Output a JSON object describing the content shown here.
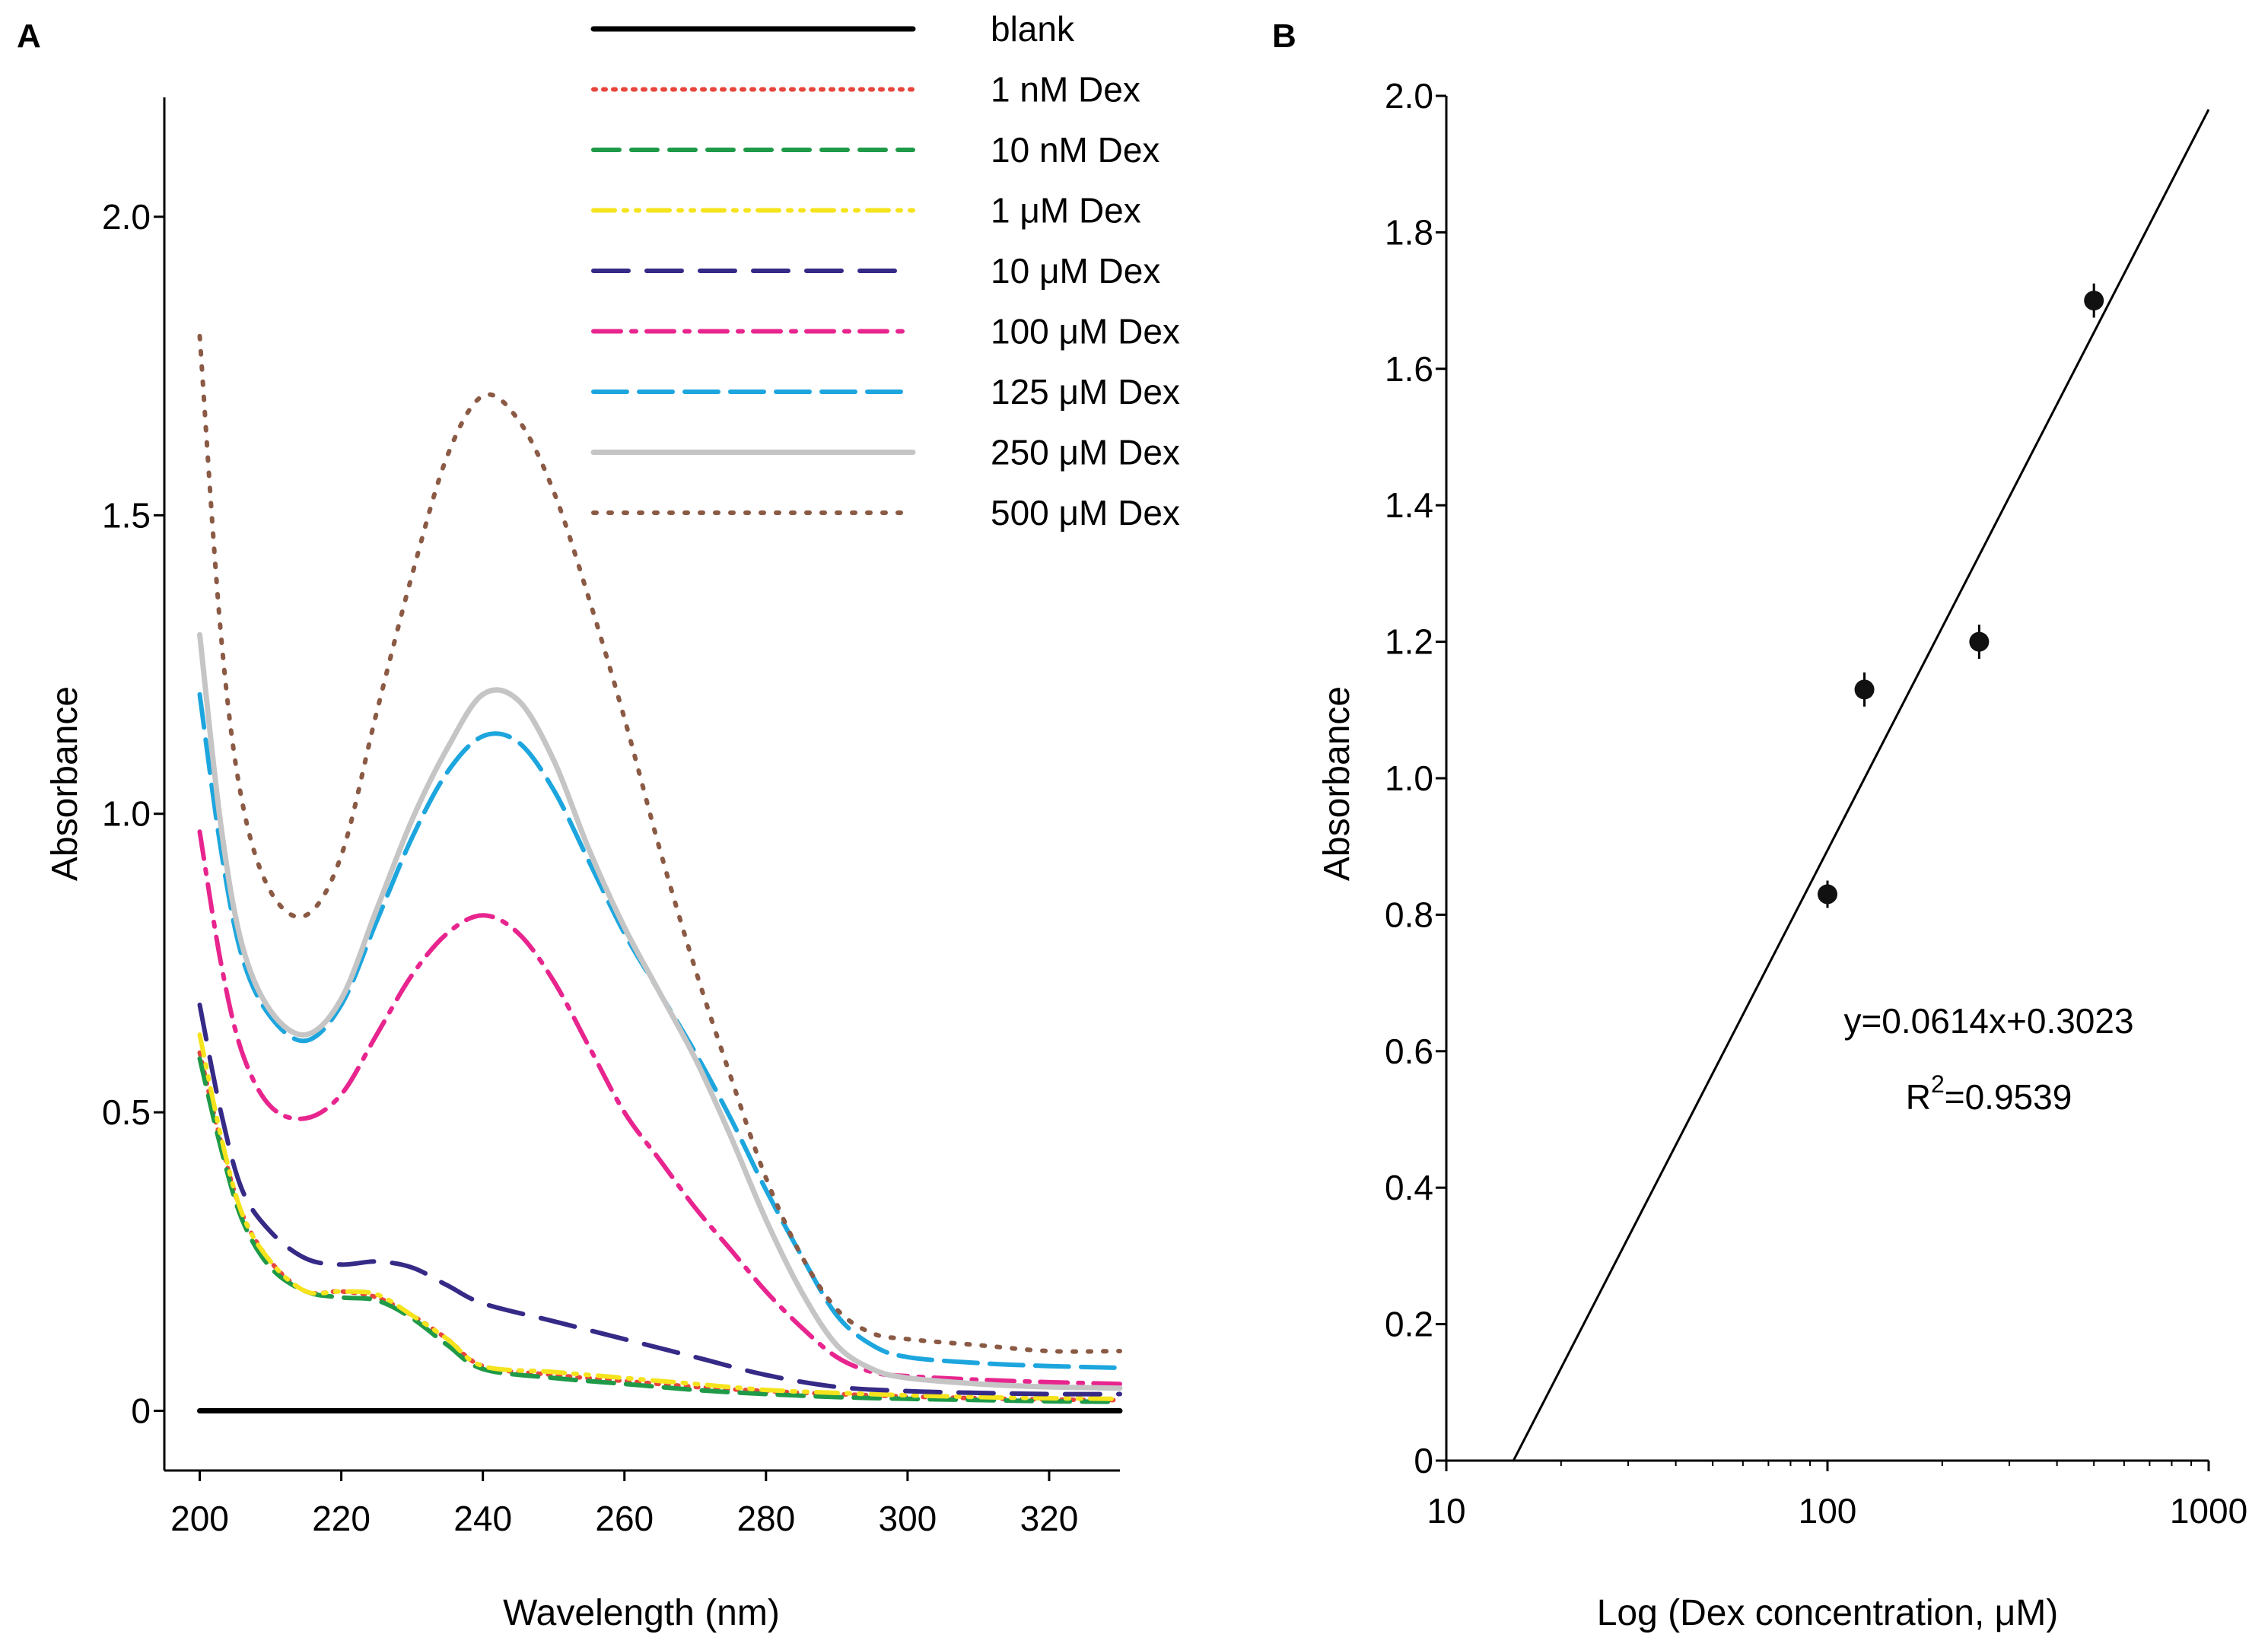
{
  "chart_data": [
    {
      "panel_label": "A",
      "type": "line",
      "xlabel": "Wavelength (nm)",
      "ylabel": "Absorbance",
      "xlim": [
        195,
        330
      ],
      "ylim": [
        -0.1,
        2.2
      ],
      "xticks": [
        200,
        220,
        240,
        260,
        280,
        300,
        320
      ],
      "xtick_labels": [
        "200",
        "220",
        "240",
        "260",
        "280",
        "300",
        "320"
      ],
      "yticks": [
        0,
        0.5,
        1.0,
        1.5,
        2.0
      ],
      "ytick_labels": [
        "0",
        "0.5",
        "1.0",
        "1.5",
        "2.0"
      ],
      "legend_position": "top-right",
      "series": [
        {
          "name": "blank",
          "color": "#000000",
          "style": "solid",
          "x": [
            200,
            330
          ],
          "y": [
            0.0,
            0.0
          ]
        },
        {
          "name": "1 nM Dex",
          "color": "#e8453c",
          "style": "dotted",
          "x": [
            200,
            203,
            206,
            210,
            215,
            220,
            225,
            230,
            235,
            240,
            250,
            260,
            270,
            280,
            290,
            300,
            310,
            320,
            330
          ],
          "y": [
            0.6,
            0.45,
            0.33,
            0.25,
            0.2,
            0.2,
            0.19,
            0.16,
            0.12,
            0.075,
            0.06,
            0.05,
            0.04,
            0.033,
            0.028,
            0.024,
            0.021,
            0.019,
            0.018
          ]
        },
        {
          "name": "10 nM Dex",
          "color": "#1f9a48",
          "style": "dashed",
          "x": [
            200,
            203,
            206,
            210,
            215,
            220,
            225,
            230,
            235,
            240,
            250,
            260,
            270,
            280,
            290,
            300,
            310,
            320,
            330
          ],
          "y": [
            0.59,
            0.44,
            0.32,
            0.24,
            0.2,
            0.19,
            0.185,
            0.155,
            0.11,
            0.07,
            0.055,
            0.045,
            0.035,
            0.028,
            0.023,
            0.02,
            0.018,
            0.016,
            0.015
          ]
        },
        {
          "name": "1 μM Dex",
          "color": "#f5e31c",
          "style": "dash-dot-dot",
          "x": [
            200,
            203,
            206,
            210,
            215,
            220,
            225,
            230,
            235,
            240,
            250,
            260,
            270,
            280,
            290,
            300,
            310,
            320,
            330
          ],
          "y": [
            0.63,
            0.46,
            0.33,
            0.25,
            0.2,
            0.2,
            0.195,
            0.16,
            0.12,
            0.075,
            0.065,
            0.055,
            0.045,
            0.035,
            0.03,
            0.026,
            0.023,
            0.021,
            0.02
          ]
        },
        {
          "name": "10 μM Dex",
          "color": "#362a87",
          "style": "long-dash",
          "x": [
            200,
            203,
            206,
            210,
            215,
            220,
            225,
            230,
            235,
            240,
            250,
            260,
            270,
            280,
            290,
            300,
            310,
            320,
            330
          ],
          "y": [
            0.68,
            0.5,
            0.37,
            0.3,
            0.255,
            0.245,
            0.25,
            0.24,
            0.21,
            0.18,
            0.15,
            0.12,
            0.09,
            0.06,
            0.04,
            0.033,
            0.03,
            0.028,
            0.028
          ]
        },
        {
          "name": "100 μM Dex",
          "color": "#e8258e",
          "style": "dash-dot",
          "x": [
            200,
            203,
            206,
            210,
            215,
            220,
            225,
            230,
            235,
            240,
            245,
            250,
            255,
            260,
            265,
            270,
            275,
            280,
            285,
            290,
            295,
            300,
            310,
            320,
            330
          ],
          "y": [
            0.97,
            0.75,
            0.6,
            0.51,
            0.49,
            0.53,
            0.63,
            0.73,
            0.8,
            0.83,
            0.8,
            0.72,
            0.61,
            0.5,
            0.42,
            0.34,
            0.27,
            0.2,
            0.14,
            0.09,
            0.065,
            0.058,
            0.052,
            0.048,
            0.045
          ]
        },
        {
          "name": "125 μM Dex",
          "color": "#1da6de",
          "style": "dashed-long",
          "x": [
            200,
            203,
            206,
            210,
            215,
            220,
            225,
            230,
            235,
            240,
            245,
            250,
            255,
            260,
            265,
            270,
            275,
            280,
            285,
            290,
            295,
            300,
            310,
            320,
            330
          ],
          "y": [
            1.2,
            0.94,
            0.76,
            0.66,
            0.62,
            0.68,
            0.82,
            0.96,
            1.07,
            1.13,
            1.12,
            1.04,
            0.92,
            0.8,
            0.7,
            0.6,
            0.49,
            0.37,
            0.26,
            0.16,
            0.11,
            0.09,
            0.08,
            0.075,
            0.072
          ]
        },
        {
          "name": "250 μM Dex",
          "color": "#c5c5c5",
          "style": "solid",
          "x": [
            200,
            203,
            206,
            210,
            215,
            220,
            225,
            230,
            235,
            240,
            245,
            250,
            255,
            260,
            265,
            270,
            275,
            280,
            285,
            290,
            295,
            300,
            310,
            320,
            330
          ],
          "y": [
            1.3,
            0.98,
            0.78,
            0.67,
            0.63,
            0.69,
            0.84,
            0.99,
            1.11,
            1.2,
            1.19,
            1.09,
            0.94,
            0.81,
            0.7,
            0.59,
            0.46,
            0.32,
            0.2,
            0.11,
            0.07,
            0.055,
            0.045,
            0.04,
            0.038
          ]
        },
        {
          "name": "500 μM Dex",
          "color": "#8b5a45",
          "style": "dotted-wide",
          "x": [
            200,
            203,
            206,
            210,
            215,
            220,
            225,
            230,
            235,
            240,
            245,
            250,
            255,
            260,
            265,
            270,
            275,
            280,
            285,
            290,
            295,
            300,
            310,
            320,
            330
          ],
          "y": [
            1.8,
            1.3,
            1.02,
            0.87,
            0.83,
            0.93,
            1.17,
            1.4,
            1.6,
            1.7,
            1.66,
            1.54,
            1.36,
            1.16,
            0.94,
            0.74,
            0.56,
            0.39,
            0.26,
            0.17,
            0.13,
            0.12,
            0.11,
            0.1,
            0.1
          ]
        }
      ]
    },
    {
      "panel_label": "B",
      "type": "scatter",
      "xlabel": "Log (Dex concentration, μM)",
      "ylabel": "Absorbance",
      "xscale": "log",
      "xlim": [
        10,
        1000
      ],
      "ylim": [
        0,
        2.0
      ],
      "xticks": [
        10,
        100,
        1000
      ],
      "xtick_labels": [
        "10",
        "100",
        "1000"
      ],
      "yticks": [
        0,
        0.2,
        0.4,
        0.6,
        0.8,
        1.0,
        1.2,
        1.4,
        1.6,
        1.8,
        2.0
      ],
      "ytick_labels": [
        "0",
        "0.2",
        "0.4",
        "0.6",
        "0.8",
        "1.0",
        "1.2",
        "1.4",
        "1.6",
        "1.8",
        "2.0"
      ],
      "points": [
        {
          "x": 100,
          "y": 0.83,
          "err": 0.02
        },
        {
          "x": 125,
          "y": 1.13,
          "err": 0.025
        },
        {
          "x": 250,
          "y": 1.2,
          "err": 0.025
        },
        {
          "x": 500,
          "y": 1.7,
          "err": 0.025
        }
      ],
      "fit_line": {
        "x": [
          15,
          1000
        ],
        "y": [
          0,
          1.98
        ]
      },
      "equation": "y=0.0614x+0.3023",
      "r2_label": "R",
      "r2_sup": "2",
      "r2_value": "=0.9539"
    }
  ]
}
